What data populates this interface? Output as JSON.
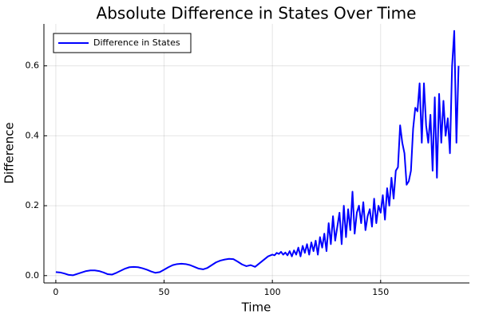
{
  "chart_data": {
    "type": "line",
    "title": "Absolute Difference in States Over Time",
    "x_label": "Time",
    "y_label": "Difference",
    "xlim": [
      -5.5,
      191
    ],
    "ylim": [
      -0.021,
      0.72
    ],
    "xticks": [
      0,
      50,
      100,
      150
    ],
    "yticks": [
      0.0,
      0.2,
      0.4,
      0.6
    ],
    "grid": true,
    "legend": "top-left",
    "x": [
      0,
      2,
      4,
      6,
      8,
      10,
      12,
      14,
      16,
      18,
      20,
      22,
      24,
      26,
      28,
      30,
      32,
      34,
      36,
      38,
      40,
      42,
      44,
      46,
      48,
      50,
      52,
      54,
      56,
      58,
      60,
      62,
      64,
      66,
      68,
      70,
      72,
      74,
      76,
      78,
      80,
      82,
      84,
      86,
      88,
      90,
      92,
      94,
      96,
      98,
      100,
      101,
      102,
      103,
      104,
      105,
      106,
      107,
      108,
      109,
      110,
      111,
      112,
      113,
      114,
      115,
      116,
      117,
      118,
      119,
      120,
      121,
      122,
      123,
      124,
      125,
      126,
      127,
      128,
      129,
      130,
      131,
      132,
      133,
      134,
      135,
      136,
      137,
      138,
      139,
      140,
      141,
      142,
      143,
      144,
      145,
      146,
      147,
      148,
      149,
      150,
      151,
      152,
      153,
      154,
      155,
      156,
      157,
      158,
      159,
      160,
      161,
      162,
      163,
      164,
      165,
      166,
      167,
      168,
      169,
      170,
      171,
      172,
      173,
      174,
      175,
      176,
      177,
      178,
      179,
      180,
      181,
      182,
      183,
      184,
      185,
      186
    ],
    "series": [
      {
        "name": "Difference in States",
        "color": "#0000ff",
        "values": [
          0.01,
          0.009,
          0.006,
          0.002,
          0.001,
          0.005,
          0.009,
          0.013,
          0.015,
          0.015,
          0.013,
          0.009,
          0.004,
          0.003,
          0.008,
          0.014,
          0.02,
          0.024,
          0.025,
          0.024,
          0.021,
          0.017,
          0.012,
          0.008,
          0.01,
          0.017,
          0.024,
          0.03,
          0.033,
          0.034,
          0.033,
          0.03,
          0.025,
          0.02,
          0.018,
          0.022,
          0.03,
          0.038,
          0.043,
          0.046,
          0.048,
          0.047,
          0.04,
          0.032,
          0.027,
          0.03,
          0.025,
          0.035,
          0.045,
          0.055,
          0.06,
          0.058,
          0.065,
          0.062,
          0.068,
          0.06,
          0.066,
          0.058,
          0.07,
          0.055,
          0.072,
          0.06,
          0.08,
          0.055,
          0.085,
          0.065,
          0.09,
          0.06,
          0.095,
          0.07,
          0.1,
          0.06,
          0.11,
          0.08,
          0.12,
          0.07,
          0.15,
          0.09,
          0.17,
          0.1,
          0.14,
          0.18,
          0.09,
          0.2,
          0.11,
          0.19,
          0.13,
          0.24,
          0.12,
          0.18,
          0.2,
          0.15,
          0.21,
          0.13,
          0.17,
          0.19,
          0.14,
          0.22,
          0.15,
          0.2,
          0.18,
          0.23,
          0.16,
          0.25,
          0.2,
          0.28,
          0.22,
          0.3,
          0.31,
          0.43,
          0.38,
          0.35,
          0.26,
          0.27,
          0.3,
          0.42,
          0.48,
          0.47,
          0.55,
          0.38,
          0.55,
          0.43,
          0.38,
          0.46,
          0.3,
          0.51,
          0.28,
          0.52,
          0.38,
          0.5,
          0.4,
          0.45,
          0.35,
          0.6,
          0.7,
          0.38,
          0.6
        ]
      }
    ]
  }
}
